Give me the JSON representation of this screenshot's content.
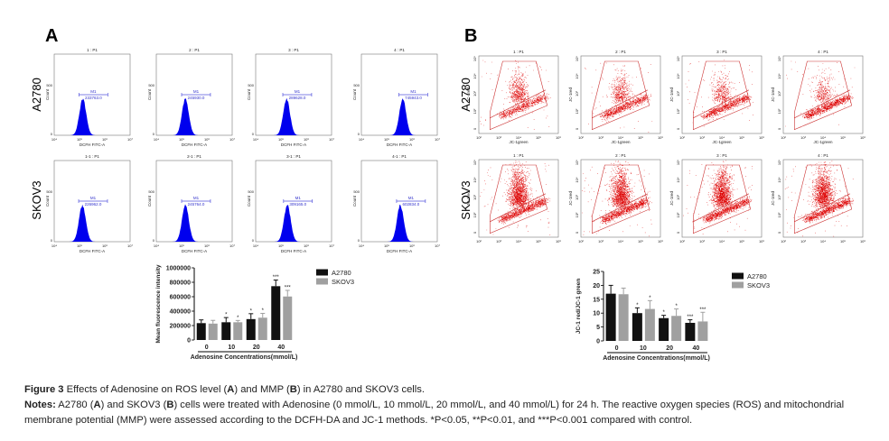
{
  "panel_a": {
    "label": "A",
    "row_labels": [
      "A2780",
      "SKOV3"
    ],
    "x_axis_label": "DCFH FITC-A",
    "y_axis_label": "Count",
    "x_ticks": [
      "10⁴",
      "10⁵",
      "10⁶",
      "10⁷"
    ],
    "y_ticks": [
      "0",
      "500"
    ],
    "histograms": [
      {
        "title": "1 : P1",
        "gate": "M1",
        "value": "233763.0"
      },
      {
        "title": "2 : P1",
        "gate": "M1",
        "value": "245930.0"
      },
      {
        "title": "3 : P1",
        "gate": "M1",
        "value": "289628.0"
      },
      {
        "title": "4 : P1",
        "gate": "M1",
        "value": "745943.0"
      },
      {
        "title": "1-1 : P1",
        "gate": "M1",
        "value": "226962.0"
      },
      {
        "title": "2-1 : P1",
        "gate": "M1",
        "value": "245764.0"
      },
      {
        "title": "3-1 : P1",
        "gate": "M1",
        "value": "309165.0"
      },
      {
        "title": "4-1 : P1",
        "gate": "M1",
        "value": "602834.0"
      }
    ],
    "histogram_color": "#0000ee",
    "gate_color": "#5555dd"
  },
  "panel_b": {
    "label": "B",
    "row_labels": [
      "A2780",
      "SKOV3"
    ],
    "x_axis_label": "JC-1green",
    "y_axis_label": "JC-1red",
    "x_ticks": [
      "10²",
      "10³",
      "10⁴",
      "10⁵",
      "10⁶"
    ],
    "y_ticks": [
      "0",
      "10²",
      "10³",
      "10⁴",
      "10⁵"
    ],
    "dot_plots": [
      {
        "title": "1 : P1"
      },
      {
        "title": "2 : P1"
      },
      {
        "title": "3 : P1"
      },
      {
        "title": "4 : P1"
      },
      {
        "title": "1 : P1"
      },
      {
        "title": "2 : P1"
      },
      {
        "title": "3 : P1"
      },
      {
        "title": "4 : P1"
      }
    ],
    "dot_color": "#dd0000"
  },
  "chart_data": [
    {
      "type": "bar",
      "categories": [
        "0",
        "10",
        "20",
        "40"
      ],
      "xlabel": "Adenosine Concentrations(mmol/L)",
      "ylabel": "Mean fluorescence intensity",
      "ylim": [
        0,
        1000000
      ],
      "y_ticks": [
        "0",
        "200000",
        "400000",
        "600000",
        "800000",
        "1000000"
      ],
      "legend": "right",
      "series": [
        {
          "name": "A2780",
          "color": "#111111",
          "values": [
            233763,
            245930,
            289628,
            745943
          ],
          "errors": [
            45000,
            65000,
            75000,
            85000
          ],
          "significance": [
            "",
            "*",
            "*",
            "***"
          ]
        },
        {
          "name": "SKOV3",
          "color": "#a0a0a0",
          "values": [
            226962,
            245764,
            309165,
            602834
          ],
          "errors": [
            45000,
            25000,
            60000,
            85000
          ],
          "significance": [
            "",
            "*",
            "*",
            "***"
          ]
        }
      ]
    },
    {
      "type": "bar",
      "categories": [
        "0",
        "10",
        "20",
        "40"
      ],
      "xlabel": "Adenosine Concentrations(mmol/L)",
      "ylabel": "JC-1 red/JC-1 green",
      "ylim": [
        0,
        25
      ],
      "y_ticks": [
        "0",
        "5",
        "10",
        "15",
        "20",
        "25"
      ],
      "legend": "right",
      "series": [
        {
          "name": "A2780",
          "color": "#111111",
          "values": [
            17,
            10,
            8.2,
            6.5
          ],
          "errors": [
            3,
            1.9,
            1,
            1.1
          ],
          "significance": [
            "",
            "*",
            "*",
            "***"
          ]
        },
        {
          "name": "SKOV3",
          "color": "#a0a0a0",
          "values": [
            16.8,
            11.5,
            9,
            7
          ],
          "errors": [
            2.2,
            3,
            2.5,
            3.3
          ],
          "significance": [
            "",
            "*",
            "*",
            "***"
          ]
        }
      ]
    }
  ],
  "caption": {
    "title_bold": "Figure 3",
    "title_a": " Effects of Adenosine on ROS level (",
    "a": "A",
    "title_b": ") and MMP (",
    "b": "B",
    "title_c": ") in A2780 and SKOV3 cells.",
    "notes_bold": "Notes:",
    "notes_a": " A2780 (",
    "notes_b": ") and SKOV3 (",
    "notes_c": ") cells were treated with Adenosine (0 mmol/L, 10 mmol/L, 20 mmol/L, and 40 mmol/L) for 24 h. The reactive oxygen species (ROS) and mitochondrial membrane potential (MMP) were assessed according to the DCFH-DA and JC-1 methods. *P<0.05, **P<0.01, and ***P<0.001 compared with control."
  }
}
